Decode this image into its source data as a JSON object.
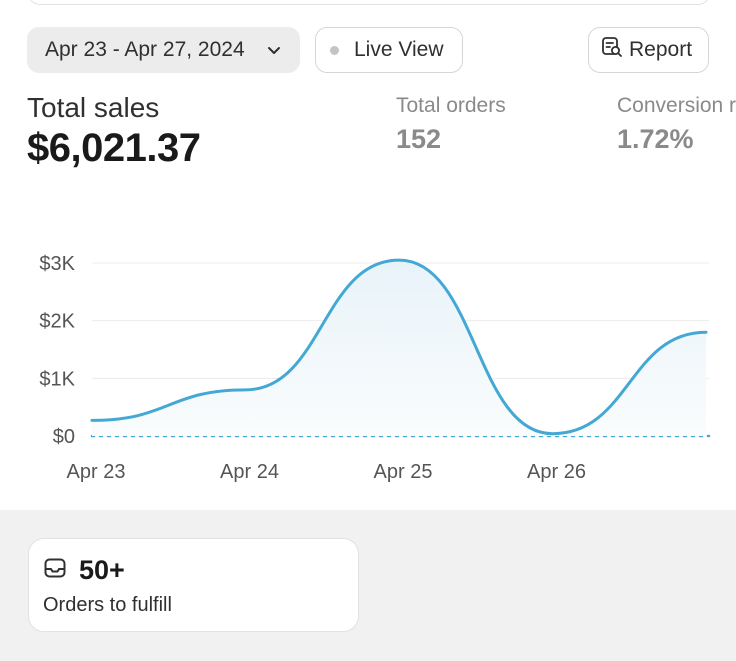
{
  "toolbar": {
    "date_range": "Apr 23 - Apr 27, 2024",
    "live_view_label": "Live View",
    "report_label": "Report"
  },
  "metrics": {
    "total_sales": {
      "label": "Total sales",
      "value": "$6,021.37"
    },
    "total_orders": {
      "label": "Total orders",
      "value": "152"
    },
    "conversion": {
      "label": "Conversion r",
      "value": "1.72%"
    }
  },
  "chart_data": {
    "type": "area",
    "y_tick_labels": [
      "$0",
      "$1K",
      "$2K",
      "$3K"
    ],
    "x_tick_labels": [
      "Apr 23",
      "Apr 24",
      "Apr 25",
      "Apr 26"
    ],
    "ylim": [
      0,
      3000
    ],
    "series": [
      {
        "x": [
          "Apr 23",
          "Apr 24",
          "Apr 25",
          "Apr 26",
          "Apr 27"
        ],
        "values": [
          270,
          800,
          3050,
          40,
          1800
        ]
      }
    ],
    "baseline": 0,
    "grid": true,
    "line_color": "#44a8d4"
  },
  "fulfill_card": {
    "count": "50+",
    "label": "Orders to fulfill"
  }
}
